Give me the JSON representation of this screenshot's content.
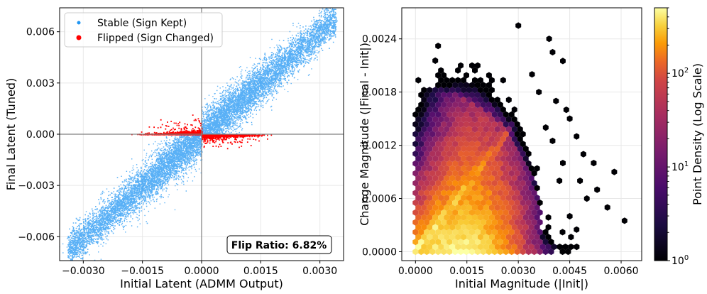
{
  "chart_data": [
    {
      "type": "scatter",
      "title": "",
      "xlabel": "Initial Latent (ADMM Output)",
      "ylabel": "Final Latent (Tuned)",
      "xlim": [
        -0.0036,
        0.0036
      ],
      "ylim": [
        -0.0074,
        0.0074
      ],
      "xticks": [
        -0.003,
        -0.0015,
        0.0,
        0.0015,
        0.003
      ],
      "xtick_labels": [
        "−0.0030",
        "−0.0015",
        "0.0000",
        "0.0015",
        "0.0030"
      ],
      "yticks": [
        -0.006,
        -0.003,
        0.0,
        0.003,
        0.006
      ],
      "ytick_labels": [
        "−0.006",
        "−0.003",
        "0.000",
        "0.003",
        "0.006"
      ],
      "grid": true,
      "reference_lines": {
        "x": 0.0,
        "y": 0.0
      },
      "series": [
        {
          "name": "Stable (Sign Kept)",
          "color": "#2196f3",
          "x_range": [
            -0.0036,
            0.0036
          ],
          "y_approx": "y ≈ 2·x ± 0.0015"
        },
        {
          "name": "Flipped (Sign Changed)",
          "color": "#ff0000",
          "x_range": [
            -0.0018,
            0.0018
          ],
          "y_approx": "y ≈ 0, opposite sign of x"
        }
      ],
      "legend_position": "upper left",
      "annotation": "Flip Ratio: 6.82%"
    },
    {
      "type": "heatmap",
      "subtype": "hexbin",
      "title": "",
      "xlabel": "Initial Magnitude (|Init|)",
      "ylabel": "Change Magnitude (|Final - Init|)",
      "xlim": [
        -0.0004,
        0.0066
      ],
      "ylim": [
        -0.0001,
        0.00275
      ],
      "xticks": [
        0.0,
        0.0015,
        0.003,
        0.0045,
        0.006
      ],
      "xtick_labels": [
        "0.0000",
        "0.0015",
        "0.0030",
        "0.0045",
        "0.0060"
      ],
      "yticks": [
        0.0,
        0.0006,
        0.0012,
        0.0018,
        0.0024
      ],
      "ytick_labels": [
        "0.0000",
        "0.0006",
        "0.0012",
        "0.0018",
        "0.0024"
      ],
      "grid": true,
      "colorbar": {
        "label": "Point Density (Log Scale)",
        "scale": "log",
        "range": [
          1,
          500
        ],
        "colormap": "inferno",
        "ticks": [
          {
            "base": "10",
            "exp": "0",
            "value": 1
          },
          {
            "base": "10",
            "exp": "1",
            "value": 10
          },
          {
            "base": "10",
            "exp": "2",
            "value": 100
          }
        ]
      },
      "outlier_points": [
        [
          0.003,
          0.00255
        ],
        [
          0.0039,
          0.0024
        ],
        [
          0.004,
          0.00225
        ],
        [
          0.0043,
          0.00215
        ],
        [
          0.0044,
          0.0016
        ],
        [
          0.0045,
          0.0015
        ],
        [
          0.0047,
          0.0013
        ],
        [
          0.0049,
          0.0011
        ],
        [
          0.0052,
          0.001
        ],
        [
          0.0048,
          0.0008
        ],
        [
          0.005,
          0.0006
        ],
        [
          0.0053,
          0.0007
        ],
        [
          0.0056,
          0.0005
        ],
        [
          0.0058,
          0.0009
        ],
        [
          0.0061,
          0.00035
        ],
        [
          0.0045,
          0.0004
        ],
        [
          0.0043,
          0.001
        ],
        [
          0.0042,
          0.0008
        ],
        [
          0.004,
          0.00125
        ],
        [
          0.0038,
          0.0014
        ],
        [
          0.0041,
          0.0017
        ],
        [
          0.0036,
          0.0018
        ],
        [
          0.0034,
          0.002
        ],
        [
          0.0047,
          0.00025
        ]
      ]
    }
  ]
}
